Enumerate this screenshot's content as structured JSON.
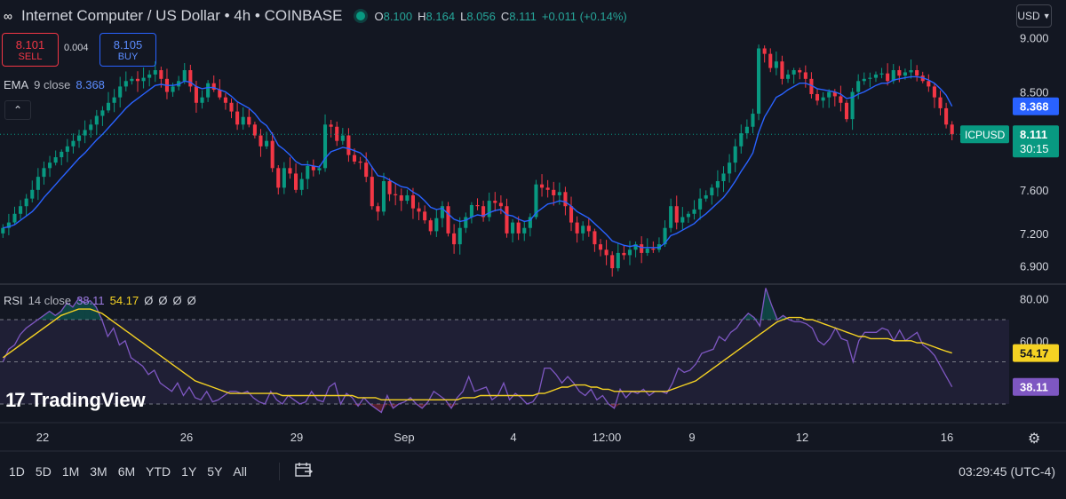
{
  "header": {
    "title": "Internet Computer / US Dollar • 4h • COINBASE",
    "ohlc": [
      {
        "k": "O",
        "v": "8.100"
      },
      {
        "k": "H",
        "v": "8.164"
      },
      {
        "k": "L",
        "v": "8.056"
      },
      {
        "k": "C",
        "v": "8.111"
      },
      {
        "k": "",
        "v": "+0.011 (+0.14%)"
      }
    ],
    "currency": "USD"
  },
  "trade": {
    "sell_price": "8.101",
    "sell_label": "SELL",
    "spread": "0.004",
    "buy_price": "8.105",
    "buy_label": "BUY"
  },
  "ema": {
    "label": "EMA",
    "params": "9 close",
    "value": "8.368"
  },
  "rsi": {
    "label": "RSI",
    "params": "14 close",
    "value": "38.11",
    "ma_value": "54.17",
    "extras": [
      "Ø",
      "Ø",
      "Ø",
      "Ø"
    ]
  },
  "logo": "TradingView",
  "timeframes": [
    "1D",
    "5D",
    "1M",
    "3M",
    "6M",
    "YTD",
    "1Y",
    "5Y",
    "All"
  ],
  "clock": "03:29:45 (UTC-4)",
  "colors": {
    "up": "#089981",
    "down": "#f23645",
    "ema": "#2962ff",
    "rsi": "#7e57c2",
    "rsi_ma": "#f5d223",
    "bg": "#131722"
  },
  "chart_data": [
    {
      "type": "candlestick",
      "symbol": "ICPUSD",
      "interval": "4h",
      "price_axis": {
        "ticks": [
          "9.000",
          "8.500",
          "8.100",
          "7.600",
          "7.200",
          "6.900"
        ],
        "ylim": [
          6.75,
          9.1
        ]
      },
      "time_axis": {
        "ticks": [
          "22",
          "26",
          "29",
          "Sep",
          "4",
          "12:00",
          "9",
          "12",
          "16"
        ]
      },
      "last_price_label": {
        "symbol": "ICPUSD",
        "price": "8.111",
        "countdown": "30:15"
      },
      "ema_label": "8.368",
      "close": [
        7.25,
        7.3,
        7.38,
        7.45,
        7.52,
        7.6,
        7.72,
        7.8,
        7.85,
        7.9,
        7.95,
        8.0,
        8.05,
        8.1,
        8.15,
        8.2,
        8.28,
        8.33,
        8.4,
        8.45,
        8.55,
        8.6,
        8.62,
        8.6,
        8.63,
        8.66,
        8.7,
        8.62,
        8.5,
        8.55,
        8.6,
        8.7,
        8.55,
        8.4,
        8.45,
        8.58,
        8.52,
        8.45,
        8.4,
        8.32,
        8.2,
        8.27,
        8.2,
        8.1,
        8.0,
        8.05,
        7.8,
        7.62,
        7.8,
        7.75,
        7.6,
        7.7,
        7.82,
        7.78,
        7.8,
        8.2,
        8.18,
        8.05,
        8.1,
        7.92,
        7.86,
        7.85,
        7.72,
        7.45,
        7.4,
        7.68,
        7.56,
        7.55,
        7.5,
        7.55,
        7.43,
        7.4,
        7.32,
        7.22,
        7.34,
        7.45,
        7.2,
        7.1,
        7.25,
        7.35,
        7.46,
        7.45,
        7.35,
        7.5,
        7.48,
        7.45,
        7.2,
        7.3,
        7.2,
        7.25,
        7.35,
        7.65,
        7.62,
        7.6,
        7.55,
        7.58,
        7.45,
        7.3,
        7.2,
        7.27,
        7.22,
        7.1,
        7.05,
        7.0,
        6.88,
        7.02,
        7.0,
        7.05,
        7.1,
        7.02,
        7.06,
        7.05,
        7.1,
        7.25,
        7.45,
        7.3,
        7.35,
        7.38,
        7.42,
        7.52,
        7.55,
        7.62,
        7.68,
        7.75,
        7.85,
        8.0,
        8.12,
        8.18,
        8.3,
        8.9,
        8.85,
        8.72,
        8.78,
        8.62,
        8.66,
        8.7,
        8.68,
        8.62,
        8.48,
        8.42,
        8.45,
        8.5,
        8.46,
        8.4,
        8.25,
        8.5,
        8.6,
        8.62,
        8.63,
        8.66,
        8.67,
        8.6,
        8.7,
        8.65,
        8.68,
        8.7,
        8.65,
        8.6,
        8.55,
        8.45,
        8.35,
        8.2,
        8.111
      ],
      "ema9": [
        7.25,
        7.26,
        7.28,
        7.32,
        7.36,
        7.4,
        7.46,
        7.53,
        7.59,
        7.65,
        7.71,
        7.77,
        7.83,
        7.89,
        7.94,
        8.0,
        8.06,
        8.11,
        8.17,
        8.23,
        8.29,
        8.35,
        8.4,
        8.44,
        8.48,
        8.52,
        8.56,
        8.57,
        8.56,
        8.56,
        8.57,
        8.6,
        8.59,
        8.55,
        8.53,
        8.54,
        8.54,
        8.52,
        8.5,
        8.46,
        8.41,
        8.38,
        8.35,
        8.3,
        8.23,
        8.19,
        8.11,
        8.01,
        7.97,
        7.92,
        7.86,
        7.83,
        7.83,
        7.82,
        7.81,
        7.89,
        7.95,
        7.97,
        7.99,
        7.98,
        7.96,
        7.94,
        7.89,
        7.81,
        7.73,
        7.72,
        7.69,
        7.66,
        7.63,
        7.62,
        7.58,
        7.55,
        7.5,
        7.44,
        7.42,
        7.43,
        7.38,
        7.33,
        7.31,
        7.32,
        7.35,
        7.37,
        7.36,
        7.39,
        7.41,
        7.42,
        7.37,
        7.36,
        7.33,
        7.31,
        7.32,
        7.39,
        7.43,
        7.47,
        7.48,
        7.5,
        7.49,
        7.45,
        7.4,
        7.37,
        7.34,
        7.29,
        7.24,
        7.19,
        7.13,
        7.11,
        7.09,
        7.08,
        7.09,
        7.07,
        7.07,
        7.07,
        7.07,
        7.11,
        7.18,
        7.2,
        7.23,
        7.26,
        7.29,
        7.34,
        7.38,
        7.43,
        7.48,
        7.53,
        7.6,
        7.68,
        7.77,
        7.85,
        7.94,
        8.13,
        8.27,
        8.36,
        8.45,
        8.48,
        8.52,
        8.55,
        8.58,
        8.58,
        8.56,
        8.53,
        8.52,
        8.51,
        8.5,
        8.48,
        8.44,
        8.45,
        8.48,
        8.5,
        8.53,
        8.56,
        8.58,
        8.58,
        8.61,
        8.62,
        8.63,
        8.64,
        8.64,
        8.63,
        8.61,
        8.58,
        8.53,
        8.47,
        8.368
      ]
    },
    {
      "type": "line",
      "title": "RSI",
      "y_axis": {
        "ticks": [
          "80.00",
          "60.00"
        ],
        "ylim": [
          22,
          86
        ]
      },
      "bands": [
        70,
        50,
        30
      ],
      "series": [
        {
          "name": "RSI",
          "values": [
            50,
            56,
            58,
            63,
            66,
            68,
            70,
            72,
            74,
            72,
            74,
            78,
            76,
            80,
            78,
            79,
            76,
            70,
            62,
            66,
            58,
            60,
            52,
            50,
            48,
            44,
            46,
            40,
            38,
            36,
            40,
            34,
            38,
            33,
            32,
            36,
            31,
            32,
            34,
            36,
            36,
            35,
            36,
            33,
            31,
            30,
            36,
            32,
            30,
            34,
            32,
            30,
            31,
            36,
            32,
            31,
            38,
            40,
            30,
            35,
            33,
            29,
            33,
            30,
            28,
            26,
            34,
            28,
            30,
            31,
            33,
            30,
            28,
            31,
            36,
            34,
            32,
            28,
            33,
            36,
            43,
            36,
            37,
            38,
            32,
            34,
            40,
            32,
            35,
            33,
            30,
            31,
            35,
            47,
            47,
            44,
            40,
            43,
            40,
            36,
            34,
            37,
            32,
            34,
            30,
            28,
            37,
            33,
            36,
            35,
            37,
            34,
            36,
            36,
            35,
            40,
            47,
            45,
            46,
            49,
            54,
            55,
            56,
            62,
            60,
            64,
            66,
            70,
            73,
            71,
            67,
            85,
            77,
            70,
            72,
            70,
            69,
            69,
            68,
            66,
            60,
            58,
            61,
            66,
            61,
            60,
            50,
            60,
            64,
            64,
            64,
            66,
            65,
            60,
            65,
            60,
            62,
            64,
            58,
            56,
            53,
            48,
            43,
            38.11
          ]
        },
        {
          "name": "RSI-based MA",
          "values": [
            52,
            54,
            56,
            58,
            60,
            62,
            64,
            66,
            68,
            70,
            72,
            73,
            74,
            75,
            75,
            75,
            74,
            73,
            71,
            69,
            67,
            65,
            63,
            61,
            59,
            57,
            55,
            53,
            51,
            49,
            47,
            45,
            43,
            41,
            40,
            39,
            38,
            37,
            36,
            35,
            35,
            35,
            35,
            35,
            35,
            35,
            35,
            35,
            34,
            34,
            34,
            34,
            34,
            34,
            34,
            34,
            34,
            34,
            34,
            34,
            34,
            33,
            33,
            33,
            33,
            32,
            32,
            32,
            32,
            32,
            32,
            32,
            32,
            32,
            32,
            32,
            32,
            32,
            32,
            33,
            33,
            33,
            34,
            34,
            34,
            34,
            34,
            34,
            34,
            34,
            34,
            34,
            35,
            35,
            36,
            37,
            38,
            38,
            39,
            39,
            39,
            38,
            38,
            37,
            37,
            36,
            36,
            36,
            36,
            36,
            36,
            36,
            36,
            36,
            36,
            37,
            38,
            39,
            40,
            41,
            43,
            45,
            47,
            49,
            51,
            53,
            55,
            57,
            59,
            61,
            63,
            65,
            67,
            69,
            70,
            71,
            71,
            71,
            70,
            70,
            69,
            68,
            67,
            66,
            65,
            64,
            63,
            62,
            62,
            61,
            61,
            61,
            61,
            60,
            60,
            60,
            60,
            59,
            59,
            58,
            57,
            56,
            55,
            54.17
          ]
        }
      ]
    }
  ]
}
